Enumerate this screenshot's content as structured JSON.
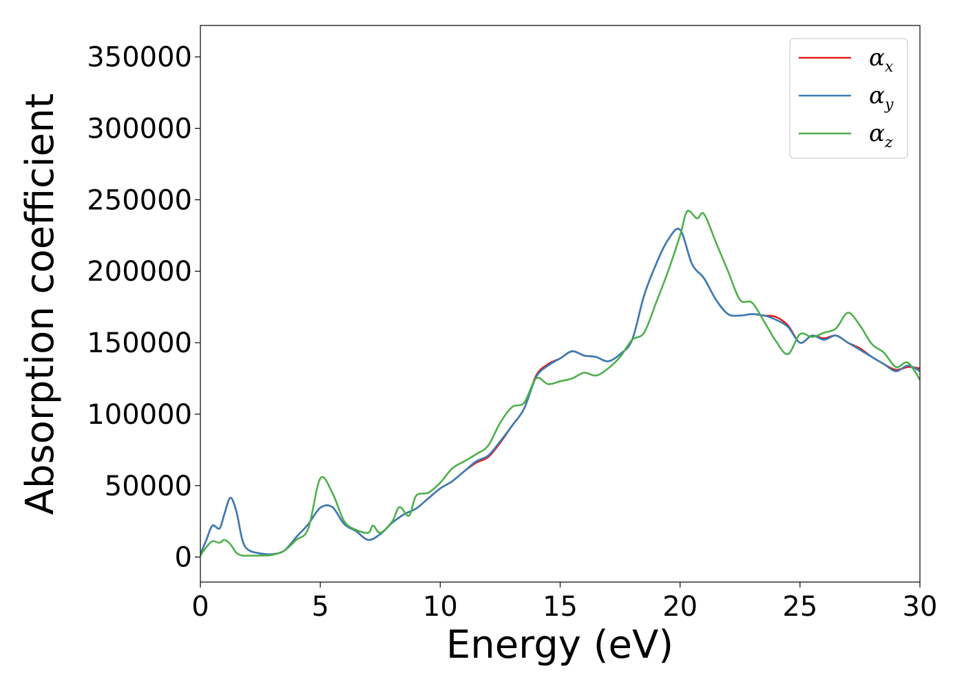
{
  "chart_data": {
    "type": "line",
    "title": "",
    "xlabel": "Energy (eV)",
    "ylabel": "Absorption coefficient",
    "xlim": [
      0,
      30
    ],
    "ylim": [
      -17500,
      372000
    ],
    "xticks": [
      "0",
      "5",
      "10",
      "15",
      "20",
      "25",
      "30"
    ],
    "yticks": [
      "0",
      "50000",
      "100000",
      "150000",
      "200000",
      "250000",
      "300000",
      "350000"
    ],
    "legend_position": "top-right",
    "grid": false,
    "series": [
      {
        "name": "α_x",
        "symbol": "α",
        "subscript": "x",
        "color": "#e41a1c",
        "x": [
          0,
          0.25,
          0.5,
          0.8,
          1.0,
          1.25,
          1.5,
          1.75,
          2.0,
          2.5,
          3.0,
          3.5,
          4.0,
          4.5,
          5.0,
          5.5,
          6.0,
          6.5,
          7.0,
          7.5,
          8.0,
          8.5,
          9.0,
          9.5,
          10.0,
          10.5,
          11.0,
          11.5,
          12.0,
          12.5,
          13.0,
          13.5,
          14.0,
          14.5,
          15.0,
          15.5,
          16.0,
          16.5,
          17.0,
          17.5,
          18.0,
          18.5,
          19.0,
          19.5,
          20.0,
          20.5,
          21.0,
          21.5,
          22.0,
          22.5,
          23.0,
          23.5,
          24.0,
          24.5,
          25.0,
          25.5,
          26.0,
          26.5,
          27.0,
          27.5,
          28.0,
          28.5,
          29.0,
          29.5,
          30.0
        ],
        "y": [
          2000,
          12000,
          22000,
          20000,
          30000,
          41500,
          32000,
          12000,
          5000,
          2500,
          2000,
          4500,
          14000,
          23000,
          34500,
          35000,
          23000,
          18000,
          12000,
          16000,
          24000,
          30000,
          34000,
          41000,
          48000,
          53000,
          60000,
          66000,
          70000,
          80000,
          92000,
          104000,
          127000,
          135000,
          139000,
          144000,
          141000,
          140000,
          137000,
          142000,
          152000,
          183000,
          205000,
          222000,
          229000,
          205000,
          195000,
          180000,
          170000,
          169000,
          170000,
          169000,
          168000,
          162000,
          150000,
          155000,
          153000,
          155000,
          150000,
          146000,
          140000,
          135000,
          131000,
          133000,
          132000
        ]
      },
      {
        "name": "α_y",
        "symbol": "α",
        "subscript": "y",
        "color": "#377eb8",
        "x": [
          0,
          0.25,
          0.5,
          0.8,
          1.0,
          1.25,
          1.5,
          1.75,
          2.0,
          2.5,
          3.0,
          3.5,
          4.0,
          4.5,
          5.0,
          5.5,
          6.0,
          6.5,
          7.0,
          7.5,
          8.0,
          8.5,
          9.0,
          9.5,
          10.0,
          10.5,
          11.0,
          11.5,
          12.0,
          12.5,
          13.0,
          13.5,
          14.0,
          14.5,
          15.0,
          15.5,
          16.0,
          16.5,
          17.0,
          17.5,
          18.0,
          18.5,
          19.0,
          19.5,
          20.0,
          20.5,
          21.0,
          21.5,
          22.0,
          22.5,
          23.0,
          23.5,
          24.0,
          24.5,
          25.0,
          25.5,
          26.0,
          26.5,
          27.0,
          27.5,
          28.0,
          28.5,
          29.0,
          29.5,
          30.0
        ],
        "y": [
          2000,
          12000,
          22000,
          20000,
          30000,
          41500,
          32000,
          12000,
          5000,
          2500,
          2000,
          4500,
          14000,
          23000,
          34500,
          35000,
          23000,
          18000,
          12000,
          16000,
          24000,
          30000,
          34000,
          41000,
          48000,
          53000,
          60000,
          67000,
          71000,
          81000,
          92000,
          104000,
          126000,
          134000,
          139000,
          144000,
          141000,
          140000,
          137000,
          142000,
          152000,
          183000,
          205000,
          222000,
          229000,
          205000,
          195000,
          180000,
          170000,
          169000,
          170000,
          169000,
          166000,
          161000,
          150000,
          155000,
          152000,
          155000,
          150000,
          145000,
          140000,
          135000,
          130000,
          134000,
          130000
        ]
      },
      {
        "name": "α_z",
        "symbol": "α",
        "subscript": "z",
        "color": "#4daf4a",
        "x": [
          0,
          0.25,
          0.5,
          0.8,
          1.0,
          1.25,
          1.5,
          1.75,
          2.0,
          2.5,
          3.0,
          3.5,
          4.0,
          4.5,
          5.0,
          5.5,
          6.0,
          6.5,
          7.0,
          7.2,
          7.5,
          8.0,
          8.3,
          8.7,
          9.0,
          9.5,
          10.0,
          10.5,
          11.0,
          11.5,
          12.0,
          12.5,
          13.0,
          13.5,
          14.0,
          14.5,
          15.0,
          15.5,
          16.0,
          16.5,
          17.0,
          17.5,
          18.0,
          18.5,
          19.0,
          19.5,
          20.0,
          20.3,
          20.7,
          21.0,
          21.5,
          22.0,
          22.5,
          23.0,
          23.5,
          24.0,
          24.5,
          25.0,
          25.5,
          26.0,
          26.5,
          27.0,
          27.5,
          28.0,
          28.5,
          29.0,
          29.5,
          30.0
        ],
        "y": [
          1000,
          7000,
          11000,
          10000,
          12000,
          9000,
          3000,
          1000,
          1000,
          1000,
          1500,
          4500,
          12000,
          20000,
          55000,
          45000,
          25000,
          19000,
          17000,
          22000,
          17000,
          25000,
          35000,
          29000,
          43000,
          45000,
          52000,
          62000,
          67000,
          72000,
          78000,
          94000,
          105000,
          108000,
          125000,
          121000,
          123000,
          125000,
          129000,
          127000,
          132000,
          140000,
          152000,
          157000,
          178000,
          200000,
          225000,
          242000,
          237000,
          240000,
          220000,
          200000,
          180000,
          178000,
          165000,
          151000,
          142000,
          156000,
          154000,
          157000,
          160000,
          171000,
          162000,
          149000,
          143000,
          133000,
          136000,
          124000
        ]
      }
    ]
  }
}
